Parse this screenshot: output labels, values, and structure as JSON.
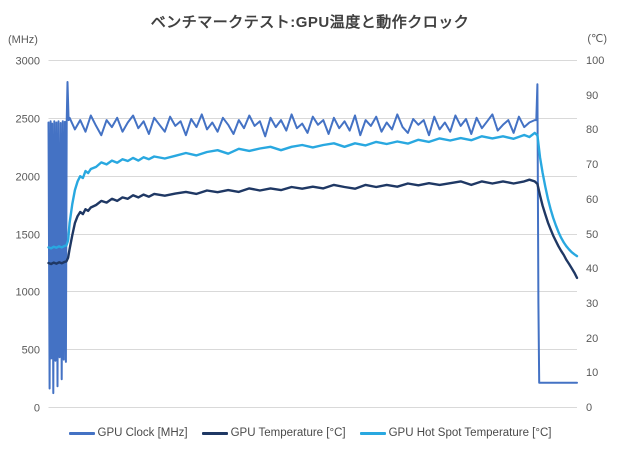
{
  "chart": {
    "title": "ベンチマークテスト:GPU温度と動作クロック"
  },
  "colors": {
    "background": "#FFFFFF",
    "grid": "#D9D9D9",
    "tick_text": "#595959",
    "title_text": "#404040",
    "legend_text": "#4A4A4A",
    "gpu_clock": "#4472C4",
    "gpu_temperature": "#1F3864",
    "gpu_hot_spot": "#29A8E0"
  },
  "chart_data": {
    "type": "line",
    "title": "ベンチマークテスト:GPU温度と動作クロック",
    "x_axis": {
      "label": "",
      "ticks_shown": false,
      "domain": [
        0,
        100
      ]
    },
    "left_axis": {
      "unit": "(MHz)",
      "range": [
        0,
        3000
      ],
      "ticks": [
        3000,
        2500,
        2000,
        1500,
        1000,
        500,
        0
      ]
    },
    "right_axis": {
      "unit": "(℃)",
      "range": [
        0,
        100
      ],
      "ticks": [
        100,
        90,
        80,
        70,
        60,
        50,
        40,
        30,
        20,
        10,
        0
      ]
    },
    "grid": "horizontal-at-left-ticks",
    "legend_position": "bottom",
    "series": [
      {
        "id": "gpu-clock",
        "name": "GPU Clock [MHz]",
        "axis": "left",
        "color": "#4472C4",
        "stroke_width": 2,
        "points": [
          [
            0,
            2460
          ],
          [
            0.2,
            160
          ],
          [
            0.4,
            2470
          ],
          [
            0.55,
            420
          ],
          [
            0.7,
            2450
          ],
          [
            0.9,
            120
          ],
          [
            1.1,
            2470
          ],
          [
            1.3,
            400
          ],
          [
            1.5,
            2460
          ],
          [
            1.7,
            180
          ],
          [
            1.9,
            2470
          ],
          [
            2.1,
            430
          ],
          [
            2.3,
            2455
          ],
          [
            2.5,
            240
          ],
          [
            2.7,
            2470
          ],
          [
            2.9,
            410
          ],
          [
            3.1,
            2465
          ],
          [
            3.3,
            390
          ],
          [
            3.45,
            2470
          ],
          [
            3.6,
            2810
          ],
          [
            3.8,
            2480
          ],
          [
            4,
            2500
          ],
          [
            5,
            2400
          ],
          [
            6,
            2480
          ],
          [
            7,
            2380
          ],
          [
            8,
            2520
          ],
          [
            9,
            2430
          ],
          [
            10,
            2350
          ],
          [
            11,
            2480
          ],
          [
            12,
            2420
          ],
          [
            13,
            2500
          ],
          [
            14,
            2380
          ],
          [
            15,
            2460
          ],
          [
            16,
            2520
          ],
          [
            17,
            2410
          ],
          [
            18,
            2470
          ],
          [
            19,
            2360
          ],
          [
            20,
            2500
          ],
          [
            21,
            2440
          ],
          [
            22,
            2380
          ],
          [
            23,
            2510
          ],
          [
            24,
            2430
          ],
          [
            25,
            2470
          ],
          [
            26,
            2350
          ],
          [
            27,
            2490
          ],
          [
            28,
            2420
          ],
          [
            29,
            2530
          ],
          [
            30,
            2400
          ],
          [
            31,
            2460
          ],
          [
            32,
            2380
          ],
          [
            33,
            2500
          ],
          [
            34,
            2440
          ],
          [
            35,
            2360
          ],
          [
            36,
            2480
          ],
          [
            37,
            2410
          ],
          [
            38,
            2520
          ],
          [
            39,
            2430
          ],
          [
            40,
            2470
          ],
          [
            41,
            2340
          ],
          [
            42,
            2500
          ],
          [
            43,
            2420
          ],
          [
            44,
            2480
          ],
          [
            45,
            2390
          ],
          [
            46,
            2530
          ],
          [
            47,
            2410
          ],
          [
            48,
            2450
          ],
          [
            49,
            2370
          ],
          [
            50,
            2510
          ],
          [
            51,
            2440
          ],
          [
            52,
            2480
          ],
          [
            53,
            2360
          ],
          [
            54,
            2500
          ],
          [
            55,
            2410
          ],
          [
            56,
            2470
          ],
          [
            57,
            2390
          ],
          [
            58,
            2520
          ],
          [
            59,
            2350
          ],
          [
            60,
            2480
          ],
          [
            61,
            2430
          ],
          [
            62,
            2510
          ],
          [
            63,
            2380
          ],
          [
            64,
            2460
          ],
          [
            65,
            2400
          ],
          [
            66,
            2530
          ],
          [
            67,
            2420
          ],
          [
            68,
            2370
          ],
          [
            69,
            2490
          ],
          [
            70,
            2440
          ],
          [
            71,
            2480
          ],
          [
            72,
            2350
          ],
          [
            73,
            2510
          ],
          [
            74,
            2400
          ],
          [
            75,
            2460
          ],
          [
            76,
            2380
          ],
          [
            77,
            2520
          ],
          [
            78,
            2430
          ],
          [
            79,
            2490
          ],
          [
            80,
            2360
          ],
          [
            81,
            2500
          ],
          [
            82,
            2410
          ],
          [
            83,
            2470
          ],
          [
            84,
            2530
          ],
          [
            85,
            2390
          ],
          [
            86,
            2440
          ],
          [
            87,
            2480
          ],
          [
            88,
            2370
          ],
          [
            89,
            2510
          ],
          [
            90,
            2420
          ],
          [
            91,
            2460
          ],
          [
            92,
            2480
          ],
          [
            92.3,
            2480
          ],
          [
            92.5,
            2790
          ],
          [
            92.7,
            900
          ],
          [
            92.85,
            210
          ],
          [
            100,
            210
          ]
        ]
      },
      {
        "id": "gpu-temperature",
        "name": "GPU Temperature [°C]",
        "axis": "right",
        "color": "#1F3864",
        "stroke_width": 2.4,
        "points": [
          [
            0,
            41.5
          ],
          [
            0.5,
            41.2
          ],
          [
            1,
            41.6
          ],
          [
            1.5,
            41.3
          ],
          [
            2,
            41.7
          ],
          [
            2.5,
            41.4
          ],
          [
            3,
            41.8
          ],
          [
            3.4,
            42
          ],
          [
            3.7,
            43
          ],
          [
            4,
            45.5
          ],
          [
            4.5,
            49.5
          ],
          [
            5,
            53
          ],
          [
            5.5,
            55
          ],
          [
            6,
            56.2
          ],
          [
            6.5,
            55.6
          ],
          [
            7,
            57
          ],
          [
            7.5,
            56.5
          ],
          [
            8,
            57.5
          ],
          [
            9,
            58.2
          ],
          [
            10,
            59.4
          ],
          [
            11,
            58.9
          ],
          [
            12,
            60
          ],
          [
            13,
            59.4
          ],
          [
            14,
            60.4
          ],
          [
            15,
            60
          ],
          [
            16,
            61
          ],
          [
            17,
            60.4
          ],
          [
            18,
            61.2
          ],
          [
            19,
            60.6
          ],
          [
            20,
            61.4
          ],
          [
            22,
            60.9
          ],
          [
            24,
            61.5
          ],
          [
            26,
            62
          ],
          [
            28,
            61.4
          ],
          [
            30,
            62.4
          ],
          [
            32,
            61.9
          ],
          [
            34,
            62.5
          ],
          [
            36,
            62
          ],
          [
            38,
            63
          ],
          [
            40,
            62.4
          ],
          [
            42,
            63
          ],
          [
            44,
            62.5
          ],
          [
            46,
            63.4
          ],
          [
            48,
            62.9
          ],
          [
            50,
            63.5
          ],
          [
            52,
            63
          ],
          [
            54,
            64
          ],
          [
            56,
            63.4
          ],
          [
            58,
            62.9
          ],
          [
            60,
            64
          ],
          [
            62,
            63.4
          ],
          [
            64,
            64
          ],
          [
            66,
            63.5
          ],
          [
            68,
            64.4
          ],
          [
            70,
            63.9
          ],
          [
            72,
            64.5
          ],
          [
            74,
            64
          ],
          [
            76,
            64.5
          ],
          [
            78,
            65
          ],
          [
            80,
            64
          ],
          [
            82,
            65
          ],
          [
            84,
            64.4
          ],
          [
            86,
            65
          ],
          [
            88,
            64.4
          ],
          [
            90,
            65
          ],
          [
            91,
            65.5
          ],
          [
            92,
            65
          ],
          [
            92.5,
            64.3
          ],
          [
            93,
            61
          ],
          [
            93.5,
            58
          ],
          [
            94,
            55.5
          ],
          [
            94.5,
            53.2
          ],
          [
            95,
            51.2
          ],
          [
            95.5,
            49.4
          ],
          [
            96,
            47.8
          ],
          [
            96.5,
            46.3
          ],
          [
            97,
            45
          ],
          [
            97.5,
            43.8
          ],
          [
            98,
            42.4
          ],
          [
            98.5,
            41.2
          ],
          [
            99,
            40
          ],
          [
            99.5,
            38.7
          ],
          [
            100,
            37.2
          ]
        ]
      },
      {
        "id": "gpu-hot-spot-temperature",
        "name": "GPU Hot Spot Temperature [°C]",
        "axis": "right",
        "color": "#29A8E0",
        "stroke_width": 2.4,
        "points": [
          [
            0,
            46
          ],
          [
            0.5,
            45.7
          ],
          [
            1,
            46.2
          ],
          [
            1.5,
            45.9
          ],
          [
            2,
            46.3
          ],
          [
            2.5,
            46
          ],
          [
            3,
            46.4
          ],
          [
            3.4,
            46.6
          ],
          [
            3.7,
            48
          ],
          [
            4,
            53
          ],
          [
            4.5,
            58.5
          ],
          [
            5,
            62.5
          ],
          [
            5.5,
            65
          ],
          [
            6,
            66.5
          ],
          [
            6.5,
            66
          ],
          [
            7,
            68
          ],
          [
            7.5,
            67.4
          ],
          [
            8,
            68.6
          ],
          [
            9,
            69.2
          ],
          [
            10,
            70.5
          ],
          [
            11,
            69.9
          ],
          [
            12,
            71
          ],
          [
            13,
            70.4
          ],
          [
            14,
            71.4
          ],
          [
            15,
            70.9
          ],
          [
            16,
            71.8
          ],
          [
            17,
            71
          ],
          [
            18,
            72
          ],
          [
            19,
            71.4
          ],
          [
            20,
            72.2
          ],
          [
            22,
            71.6
          ],
          [
            24,
            72.4
          ],
          [
            26,
            73.2
          ],
          [
            28,
            72.5
          ],
          [
            30,
            73.5
          ],
          [
            32,
            74
          ],
          [
            34,
            73
          ],
          [
            36,
            74.4
          ],
          [
            38,
            73.8
          ],
          [
            40,
            74.5
          ],
          [
            42,
            75
          ],
          [
            44,
            74
          ],
          [
            46,
            75
          ],
          [
            48,
            75.5
          ],
          [
            50,
            74.8
          ],
          [
            52,
            75.5
          ],
          [
            54,
            76
          ],
          [
            56,
            75
          ],
          [
            58,
            76
          ],
          [
            60,
            75.4
          ],
          [
            62,
            76.4
          ],
          [
            64,
            75.8
          ],
          [
            66,
            76.5
          ],
          [
            68,
            75.9
          ],
          [
            70,
            77
          ],
          [
            72,
            76.4
          ],
          [
            74,
            77.4
          ],
          [
            76,
            76.8
          ],
          [
            78,
            77.5
          ],
          [
            80,
            76.9
          ],
          [
            82,
            78
          ],
          [
            84,
            77.4
          ],
          [
            86,
            78
          ],
          [
            88,
            77.3
          ],
          [
            90,
            78.4
          ],
          [
            91,
            77.8
          ],
          [
            92,
            79
          ],
          [
            92.5,
            78.3
          ],
          [
            93,
            72
          ],
          [
            93.5,
            67.5
          ],
          [
            94,
            63.5
          ],
          [
            94.5,
            60
          ],
          [
            95,
            57
          ],
          [
            95.5,
            54.5
          ],
          [
            96,
            52.3
          ],
          [
            96.5,
            50.4
          ],
          [
            97,
            48.8
          ],
          [
            97.5,
            47.4
          ],
          [
            98,
            46.3
          ],
          [
            98.5,
            45.4
          ],
          [
            99,
            44.6
          ],
          [
            99.5,
            44
          ],
          [
            100,
            43.5
          ]
        ]
      }
    ]
  }
}
